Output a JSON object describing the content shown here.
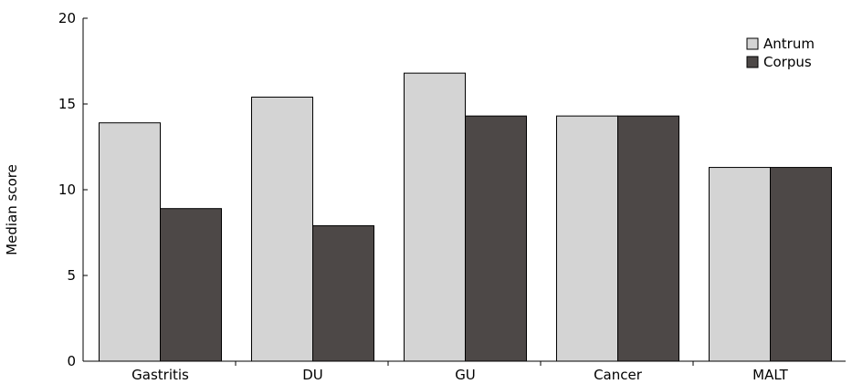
{
  "chart_data": {
    "type": "bar",
    "title": "",
    "xlabel": "",
    "ylabel": "Median score",
    "ylim": [
      0,
      20
    ],
    "yticks": [
      0,
      5,
      10,
      15,
      20
    ],
    "categories": [
      "Gastritis",
      "DU",
      "GU",
      "Cancer",
      "MALT"
    ],
    "series": [
      {
        "name": "Antrum",
        "values": [
          13.9,
          15.4,
          16.8,
          14.3,
          11.3
        ],
        "color": "#d4d4d4"
      },
      {
        "name": "Corpus",
        "values": [
          8.9,
          7.9,
          14.3,
          14.3,
          11.3
        ],
        "color": "#4d4847"
      }
    ],
    "legend_position": "top-right",
    "grid": false
  }
}
